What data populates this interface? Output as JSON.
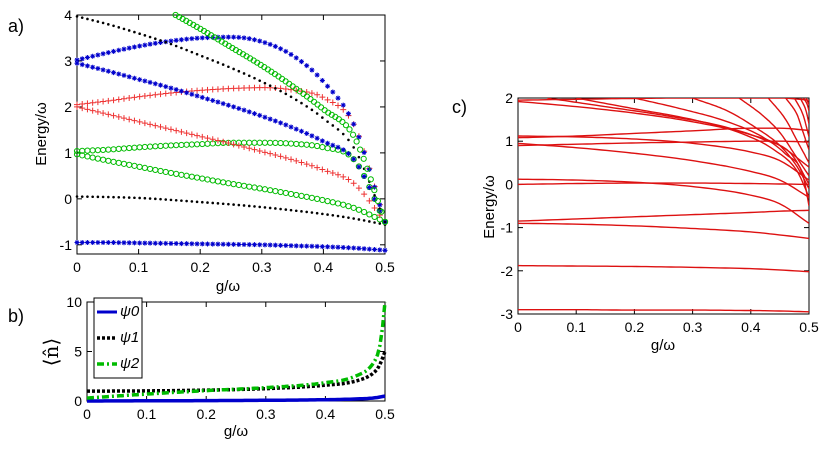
{
  "chart_data": [
    {
      "type": "scatter",
      "panel_label": "a)",
      "xlabel": "g/ω",
      "ylabel": "Energy/ω",
      "xlim": [
        0,
        0.5
      ],
      "ylim": [
        -1.2,
        4
      ],
      "xticks": [
        "0",
        "0.1",
        "0.2",
        "0.3",
        "0.4",
        "0.5"
      ],
      "yticks": [
        "-1",
        "0",
        "1",
        "2",
        "3",
        "4"
      ],
      "grid": false,
      "series": [
        {
          "color": "#0000cc",
          "marker": "star",
          "x": [
            0,
            0.05,
            0.1,
            0.15,
            0.2,
            0.25,
            0.3,
            0.35,
            0.4,
            0.45,
            0.5
          ],
          "y": [
            -0.95,
            -0.95,
            -0.96,
            -0.97,
            -0.98,
            -0.99,
            -1.0,
            -1.02,
            -1.04,
            -1.07,
            -1.12
          ]
        },
        {
          "color": "#000000",
          "marker": "dot",
          "x": [
            0,
            0.05,
            0.1,
            0.15,
            0.2,
            0.25,
            0.3,
            0.35,
            0.4,
            0.45,
            0.5
          ],
          "y": [
            0.05,
            0.04,
            0.02,
            -0.02,
            -0.07,
            -0.12,
            -0.18,
            -0.25,
            -0.33,
            -0.43,
            -0.56
          ]
        },
        {
          "color": "#00bb00",
          "marker": "circle",
          "x": [
            0,
            0.05,
            0.1,
            0.15,
            0.2,
            0.25,
            0.3,
            0.35,
            0.4,
            0.45,
            0.5
          ],
          "y": [
            0.97,
            0.83,
            0.7,
            0.57,
            0.45,
            0.33,
            0.22,
            0.1,
            -0.03,
            -0.2,
            -0.5
          ]
        },
        {
          "color": "#00bb00",
          "marker": "circle",
          "x": [
            0,
            0.05,
            0.1,
            0.15,
            0.2,
            0.25,
            0.3,
            0.35,
            0.4,
            0.45,
            0.5
          ],
          "y": [
            1.04,
            1.07,
            1.12,
            1.16,
            1.19,
            1.22,
            1.22,
            1.2,
            1.12,
            0.85,
            -0.5
          ]
        },
        {
          "color": "#ee3333",
          "marker": "plus",
          "x": [
            0,
            0.05,
            0.1,
            0.15,
            0.2,
            0.25,
            0.3,
            0.35,
            0.4,
            0.45,
            0.5
          ],
          "y": [
            2.0,
            1.84,
            1.68,
            1.52,
            1.36,
            1.2,
            1.03,
            0.85,
            0.63,
            0.33,
            -0.5
          ]
        },
        {
          "color": "#ee3333",
          "marker": "plus",
          "x": [
            0,
            0.05,
            0.1,
            0.15,
            0.2,
            0.25,
            0.3,
            0.35,
            0.4,
            0.45,
            0.5
          ],
          "y": [
            2.05,
            2.13,
            2.22,
            2.3,
            2.36,
            2.4,
            2.42,
            2.37,
            2.2,
            1.6,
            -0.5
          ]
        },
        {
          "color": "#0000cc",
          "marker": "star",
          "x": [
            0,
            0.05,
            0.1,
            0.15,
            0.2,
            0.25,
            0.3,
            0.35,
            0.4,
            0.45,
            0.5
          ],
          "y": [
            2.95,
            2.78,
            2.6,
            2.42,
            2.22,
            2.02,
            1.8,
            1.55,
            1.25,
            0.85,
            -0.5
          ]
        },
        {
          "color": "#0000cc",
          "marker": "star",
          "x": [
            0,
            0.05,
            0.1,
            0.15,
            0.2,
            0.25,
            0.3,
            0.35,
            0.4,
            0.45,
            0.5
          ],
          "y": [
            3.02,
            3.18,
            3.32,
            3.43,
            3.5,
            3.52,
            3.42,
            3.12,
            2.55,
            1.6,
            -0.5
          ]
        },
        {
          "color": "#000000",
          "marker": "dot",
          "x": [
            0,
            0.05,
            0.1,
            0.15,
            0.2,
            0.25,
            0.3,
            0.35,
            0.4,
            0.45,
            0.5
          ],
          "y": [
            3.97,
            3.8,
            3.6,
            3.38,
            3.12,
            2.85,
            2.55,
            2.2,
            1.75,
            1.1,
            -0.5
          ]
        },
        {
          "color": "#00bb00",
          "marker": "circle",
          "x": [
            0.16,
            0.2,
            0.25,
            0.3,
            0.35,
            0.4,
            0.45,
            0.5
          ],
          "y": [
            4.0,
            3.7,
            3.3,
            2.9,
            2.45,
            1.95,
            1.35,
            -0.5
          ]
        }
      ]
    },
    {
      "type": "line",
      "panel_label": "b)",
      "xlabel": "g/ω",
      "ylabel": "⟨n̂⟩",
      "xlim": [
        0,
        0.5
      ],
      "ylim": [
        0,
        10
      ],
      "xticks": [
        "0",
        "0.1",
        "0.2",
        "0.3",
        "0.4",
        "0.5"
      ],
      "yticks": [
        "0",
        "5",
        "10"
      ],
      "legend_position": "top-left",
      "series": [
        {
          "name": "ψ0",
          "color": "#0000cc",
          "style": "solid",
          "x": [
            0,
            0.1,
            0.2,
            0.3,
            0.4,
            0.45,
            0.48,
            0.49,
            0.495,
            0.5
          ],
          "y": [
            0.0,
            0.02,
            0.04,
            0.07,
            0.13,
            0.2,
            0.3,
            0.38,
            0.45,
            0.5
          ]
        },
        {
          "name": "ψ1",
          "color": "#000000",
          "style": "dotted",
          "x": [
            0,
            0.1,
            0.2,
            0.3,
            0.4,
            0.45,
            0.48,
            0.49,
            0.495,
            0.5
          ],
          "y": [
            1.0,
            1.02,
            1.1,
            1.25,
            1.6,
            2.0,
            2.8,
            3.5,
            4.2,
            5.0
          ]
        },
        {
          "name": "ψ2",
          "color": "#00bb00",
          "style": "dashdot",
          "x": [
            0,
            0.1,
            0.2,
            0.3,
            0.4,
            0.45,
            0.48,
            0.49,
            0.495,
            0.5
          ],
          "y": [
            0.3,
            0.7,
            1.05,
            1.35,
            1.85,
            2.5,
            3.8,
            5.2,
            7.0,
            10.0
          ]
        }
      ]
    },
    {
      "type": "line",
      "panel_label": "c)",
      "xlabel": "g/ω",
      "ylabel": "Energy/ω",
      "xlim": [
        0,
        0.5
      ],
      "ylim": [
        -3,
        2
      ],
      "xticks": [
        "0",
        "0.1",
        "0.2",
        "0.3",
        "0.4",
        "0.5"
      ],
      "yticks": [
        "-3",
        "-2",
        "-1",
        "0",
        "1",
        "2"
      ],
      "series": [
        {
          "color": "#dd1111",
          "x": [
            0,
            0.1,
            0.2,
            0.3,
            0.4,
            0.45,
            0.5
          ],
          "y": [
            -2.9,
            -2.9,
            -2.91,
            -2.91,
            -2.92,
            -2.93,
            -2.95
          ]
        },
        {
          "color": "#dd1111",
          "x": [
            0,
            0.1,
            0.2,
            0.3,
            0.4,
            0.45,
            0.5
          ],
          "y": [
            -1.88,
            -1.89,
            -1.9,
            -1.92,
            -1.95,
            -1.98,
            -2.02
          ]
        },
        {
          "color": "#dd1111",
          "x": [
            0,
            0.1,
            0.2,
            0.3,
            0.4,
            0.45,
            0.5
          ],
          "y": [
            -0.9,
            -0.92,
            -0.96,
            -1.02,
            -1.1,
            -1.17,
            -1.25
          ]
        },
        {
          "color": "#dd1111",
          "x": [
            0,
            0.1,
            0.2,
            0.3,
            0.4,
            0.45,
            0.5
          ],
          "y": [
            -0.85,
            -0.8,
            -0.75,
            -0.7,
            -0.65,
            -0.62,
            -0.6
          ]
        },
        {
          "color": "#dd1111",
          "x": [
            0,
            0.1,
            0.2,
            0.3,
            0.4,
            0.45,
            0.5
          ],
          "y": [
            0.12,
            0.1,
            0.05,
            -0.05,
            -0.25,
            -0.45,
            -0.9
          ]
        },
        {
          "color": "#dd1111",
          "x": [
            0,
            0.1,
            0.2,
            0.3,
            0.4,
            0.45,
            0.5
          ],
          "y": [
            0.0,
            0.02,
            0.03,
            0.03,
            0.02,
            0.01,
            0.0
          ]
        },
        {
          "color": "#dd1111",
          "x": [
            0,
            0.1,
            0.2,
            0.3,
            0.4,
            0.45,
            0.5
          ],
          "y": [
            0.95,
            0.85,
            0.72,
            0.55,
            0.3,
            0.1,
            -0.3
          ]
        },
        {
          "color": "#dd1111",
          "x": [
            0,
            0.1,
            0.2,
            0.3,
            0.4,
            0.45,
            0.5
          ],
          "y": [
            0.9,
            0.93,
            0.96,
            0.98,
            1.0,
            1.0,
            0.98
          ]
        },
        {
          "color": "#dd1111",
          "x": [
            0,
            0.1,
            0.2,
            0.3,
            0.4,
            0.45,
            0.5
          ],
          "y": [
            1.12,
            1.1,
            1.05,
            0.95,
            0.75,
            0.55,
            0.1
          ]
        },
        {
          "color": "#dd1111",
          "x": [
            0,
            0.1,
            0.2,
            0.3,
            0.4,
            0.45,
            0.5
          ],
          "y": [
            1.08,
            1.12,
            1.18,
            1.24,
            1.3,
            1.3,
            1.25
          ]
        },
        {
          "color": "#dd1111",
          "x": [
            0,
            0.1,
            0.2,
            0.3,
            0.4,
            0.45,
            0.5
          ],
          "y": [
            1.92,
            1.8,
            1.65,
            1.45,
            1.15,
            0.9,
            0.4
          ]
        },
        {
          "color": "#dd1111",
          "x": [
            0,
            0.1,
            0.2,
            0.3,
            0.4,
            0.45,
            0.5
          ],
          "y": [
            1.95,
            1.97,
            1.99,
            2.0,
            2.0,
            2.0,
            1.95
          ]
        },
        {
          "color": "#dd1111",
          "x": [
            0.05,
            0.15,
            0.25,
            0.35,
            0.42,
            0.47,
            0.5
          ],
          "y": [
            2.0,
            1.8,
            1.6,
            1.35,
            1.05,
            0.7,
            0.0
          ]
        },
        {
          "color": "#dd1111",
          "x": [
            0.1,
            0.2,
            0.3,
            0.38,
            0.44,
            0.48,
            0.5
          ],
          "y": [
            2.0,
            1.75,
            1.5,
            1.2,
            0.8,
            0.3,
            -0.3
          ]
        },
        {
          "color": "#dd1111",
          "x": [
            0.2,
            0.28,
            0.36,
            0.42,
            0.46,
            0.49,
            0.5
          ],
          "y": [
            2.0,
            1.75,
            1.45,
            1.1,
            0.7,
            0.2,
            -0.5
          ]
        },
        {
          "color": "#dd1111",
          "x": [
            0.3,
            0.36,
            0.41,
            0.45,
            0.48,
            0.5
          ],
          "y": [
            2.0,
            1.7,
            1.3,
            0.9,
            0.4,
            -0.1
          ]
        },
        {
          "color": "#dd1111",
          "x": [
            0.38,
            0.42,
            0.45,
            0.48,
            0.5
          ],
          "y": [
            2.0,
            1.6,
            1.2,
            0.6,
            0.2
          ]
        },
        {
          "color": "#dd1111",
          "x": [
            0.43,
            0.46,
            0.48,
            0.5
          ],
          "y": [
            2.0,
            1.5,
            1.0,
            0.5
          ]
        },
        {
          "color": "#dd1111",
          "x": [
            0.46,
            0.48,
            0.49,
            0.5
          ],
          "y": [
            2.0,
            1.6,
            1.2,
            0.8
          ]
        },
        {
          "color": "#dd1111",
          "x": [
            0.475,
            0.49,
            0.5
          ],
          "y": [
            2.0,
            1.6,
            1.1
          ]
        },
        {
          "color": "#dd1111",
          "x": [
            0.485,
            0.495,
            0.5
          ],
          "y": [
            2.0,
            1.7,
            1.4
          ]
        },
        {
          "color": "#dd1111",
          "x": [
            0.49,
            0.497,
            0.5
          ],
          "y": [
            2.0,
            1.85,
            1.7
          ]
        },
        {
          "color": "#dd1111",
          "x": [
            0.495,
            0.5
          ],
          "y": [
            2.0,
            1.85
          ]
        }
      ]
    }
  ]
}
